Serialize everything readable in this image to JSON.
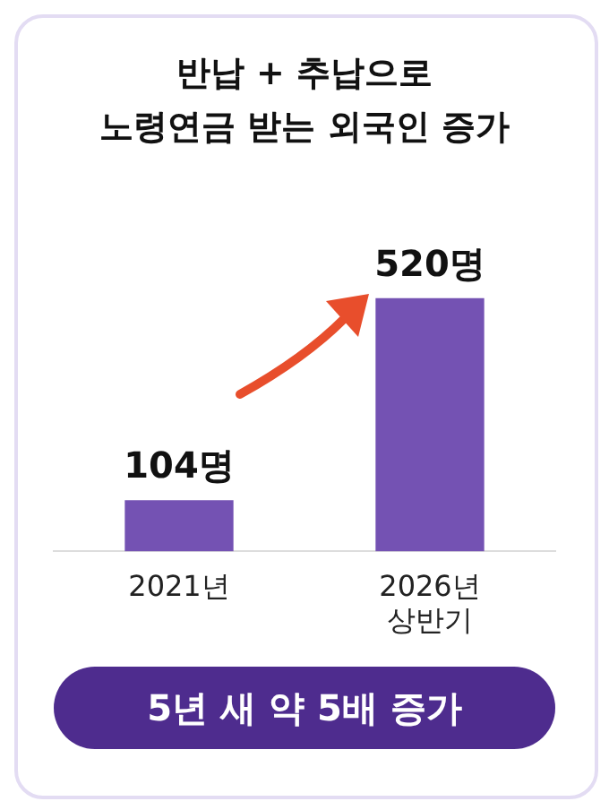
{
  "chart_data": {
    "type": "bar",
    "title": "반납 + 추납으로\n노령연금 받는 외국인 증가",
    "categories": [
      "2021년",
      "2026년\n상반기"
    ],
    "values": [
      104,
      520
    ],
    "color": "#7452b3",
    "value_labels": [
      "104명",
      "520명"
    ],
    "annotations": [
      "5년 새 약 5배 증가"
    ]
  }
}
